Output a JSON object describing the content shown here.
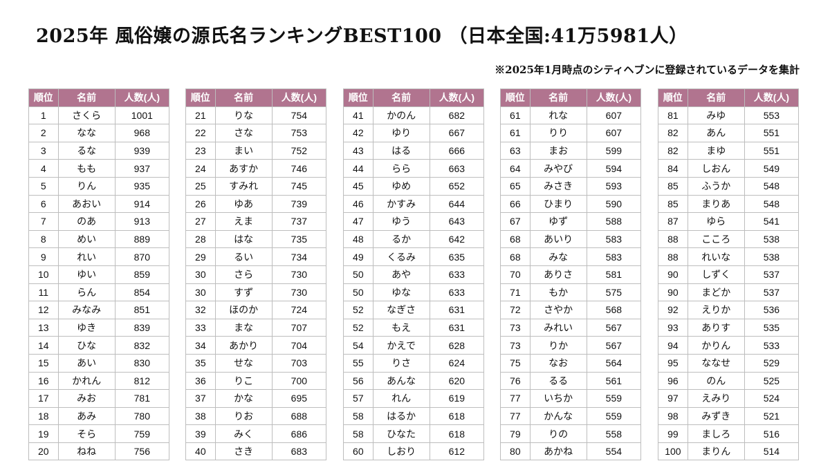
{
  "header": {
    "title": "2025年 風俗嬢の源氏名ランキングBEST100 （日本全国:41万5981人）",
    "note": "※2025年1月時点のシティヘブンに登録されているデータを集計"
  },
  "columns": {
    "rank": "順位",
    "name": "名前",
    "count": "人数(人)"
  },
  "colors": {
    "header_bg": "#b1748f",
    "header_text": "#ffffff",
    "border": "#bdbdbd"
  },
  "tables": [
    {
      "rows": [
        [
          "1",
          "さくら",
          "1001"
        ],
        [
          "2",
          "なな",
          "968"
        ],
        [
          "3",
          "るな",
          "939"
        ],
        [
          "4",
          "もも",
          "937"
        ],
        [
          "5",
          "りん",
          "935"
        ],
        [
          "6",
          "あおい",
          "914"
        ],
        [
          "7",
          "のあ",
          "913"
        ],
        [
          "8",
          "めい",
          "889"
        ],
        [
          "9",
          "れい",
          "870"
        ],
        [
          "10",
          "ゆい",
          "859"
        ],
        [
          "11",
          "らん",
          "854"
        ],
        [
          "12",
          "みなみ",
          "851"
        ],
        [
          "13",
          "ゆき",
          "839"
        ],
        [
          "14",
          "ひな",
          "832"
        ],
        [
          "15",
          "あい",
          "830"
        ],
        [
          "16",
          "かれん",
          "812"
        ],
        [
          "17",
          "みお",
          "781"
        ],
        [
          "18",
          "あみ",
          "780"
        ],
        [
          "19",
          "そら",
          "759"
        ],
        [
          "20",
          "ねね",
          "756"
        ]
      ]
    },
    {
      "rows": [
        [
          "21",
          "りな",
          "754"
        ],
        [
          "22",
          "さな",
          "753"
        ],
        [
          "23",
          "まい",
          "752"
        ],
        [
          "24",
          "あすか",
          "746"
        ],
        [
          "25",
          "すみれ",
          "745"
        ],
        [
          "26",
          "ゆあ",
          "739"
        ],
        [
          "27",
          "えま",
          "737"
        ],
        [
          "28",
          "はな",
          "735"
        ],
        [
          "29",
          "るい",
          "734"
        ],
        [
          "30",
          "さら",
          "730"
        ],
        [
          "30",
          "すず",
          "730"
        ],
        [
          "32",
          "ほのか",
          "724"
        ],
        [
          "33",
          "まな",
          "707"
        ],
        [
          "34",
          "あかり",
          "704"
        ],
        [
          "35",
          "せな",
          "703"
        ],
        [
          "36",
          "りこ",
          "700"
        ],
        [
          "37",
          "かな",
          "695"
        ],
        [
          "38",
          "りお",
          "688"
        ],
        [
          "39",
          "みく",
          "686"
        ],
        [
          "40",
          "さき",
          "683"
        ]
      ]
    },
    {
      "rows": [
        [
          "41",
          "かのん",
          "682"
        ],
        [
          "42",
          "ゆり",
          "667"
        ],
        [
          "43",
          "はる",
          "666"
        ],
        [
          "44",
          "らら",
          "663"
        ],
        [
          "45",
          "ゆめ",
          "652"
        ],
        [
          "46",
          "かすみ",
          "644"
        ],
        [
          "47",
          "ゆう",
          "643"
        ],
        [
          "48",
          "るか",
          "642"
        ],
        [
          "49",
          "くるみ",
          "635"
        ],
        [
          "50",
          "あや",
          "633"
        ],
        [
          "50",
          "ゆな",
          "633"
        ],
        [
          "52",
          "なぎさ",
          "631"
        ],
        [
          "52",
          "もえ",
          "631"
        ],
        [
          "54",
          "かえで",
          "628"
        ],
        [
          "55",
          "りさ",
          "624"
        ],
        [
          "56",
          "あんな",
          "620"
        ],
        [
          "57",
          "れん",
          "619"
        ],
        [
          "58",
          "はるか",
          "618"
        ],
        [
          "58",
          "ひなた",
          "618"
        ],
        [
          "60",
          "しおり",
          "612"
        ]
      ]
    },
    {
      "rows": [
        [
          "61",
          "れな",
          "607"
        ],
        [
          "61",
          "りり",
          "607"
        ],
        [
          "63",
          "まお",
          "599"
        ],
        [
          "64",
          "みやび",
          "594"
        ],
        [
          "65",
          "みさき",
          "593"
        ],
        [
          "66",
          "ひまり",
          "590"
        ],
        [
          "67",
          "ゆず",
          "588"
        ],
        [
          "68",
          "あいり",
          "583"
        ],
        [
          "68",
          "みな",
          "583"
        ],
        [
          "70",
          "ありさ",
          "581"
        ],
        [
          "71",
          "もか",
          "575"
        ],
        [
          "72",
          "さやか",
          "568"
        ],
        [
          "73",
          "みれい",
          "567"
        ],
        [
          "73",
          "りか",
          "567"
        ],
        [
          "75",
          "なお",
          "564"
        ],
        [
          "76",
          "るる",
          "561"
        ],
        [
          "77",
          "いちか",
          "559"
        ],
        [
          "77",
          "かんな",
          "559"
        ],
        [
          "79",
          "りの",
          "558"
        ],
        [
          "80",
          "あかね",
          "554"
        ]
      ]
    },
    {
      "rows": [
        [
          "81",
          "みゆ",
          "553"
        ],
        [
          "82",
          "あん",
          "551"
        ],
        [
          "82",
          "まゆ",
          "551"
        ],
        [
          "84",
          "しおん",
          "549"
        ],
        [
          "85",
          "ふうか",
          "548"
        ],
        [
          "85",
          "まりあ",
          "548"
        ],
        [
          "87",
          "ゆら",
          "541"
        ],
        [
          "88",
          "こころ",
          "538"
        ],
        [
          "88",
          "れいな",
          "538"
        ],
        [
          "90",
          "しずく",
          "537"
        ],
        [
          "90",
          "まどか",
          "537"
        ],
        [
          "92",
          "えりか",
          "536"
        ],
        [
          "93",
          "ありす",
          "535"
        ],
        [
          "94",
          "かりん",
          "533"
        ],
        [
          "95",
          "ななせ",
          "529"
        ],
        [
          "96",
          "のん",
          "525"
        ],
        [
          "97",
          "えみり",
          "524"
        ],
        [
          "98",
          "みずき",
          "521"
        ],
        [
          "99",
          "ましろ",
          "516"
        ],
        [
          "100",
          "まりん",
          "514"
        ]
      ]
    }
  ]
}
